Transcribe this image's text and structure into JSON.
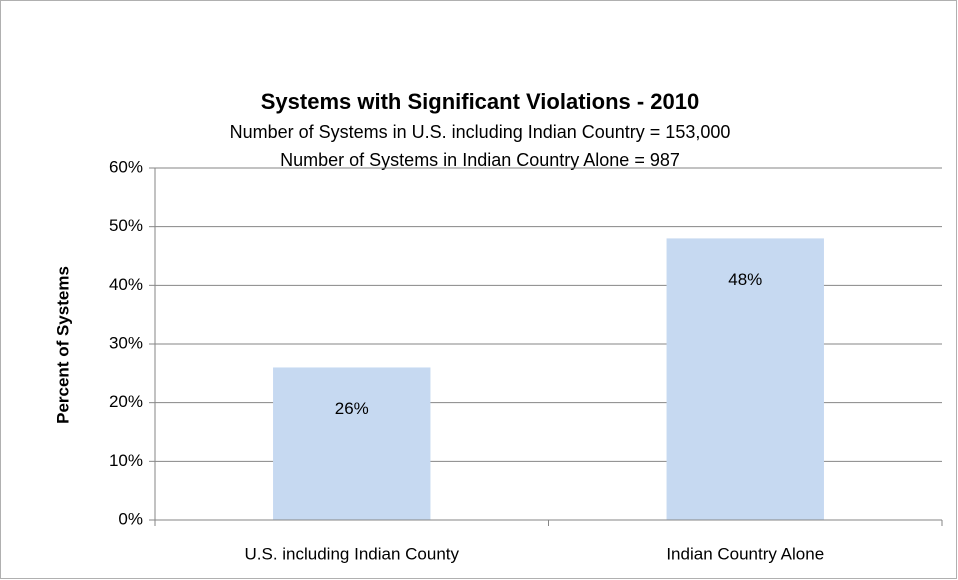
{
  "chart_data": {
    "type": "bar",
    "title": "Systems with Significant Violations - 2010",
    "subtitle": [
      "Number of Systems in U.S. including Indian Country = 153,000",
      "Number of Systems in Indian Country Alone = 987"
    ],
    "ylabel": "Percent of Systems",
    "categories": [
      "U.S. including Indian County",
      "Indian Country Alone"
    ],
    "values": [
      26,
      48
    ],
    "value_labels": [
      "26%",
      "48%"
    ],
    "color": "#c6d9f1",
    "ylim": [
      0,
      60
    ],
    "yticks": [
      {
        "value": 0,
        "label": "0%"
      },
      {
        "value": 10,
        "label": "10%"
      },
      {
        "value": 20,
        "label": "20%"
      },
      {
        "value": 30,
        "label": "30%"
      },
      {
        "value": 40,
        "label": "40%"
      },
      {
        "value": 50,
        "label": "50%"
      },
      {
        "value": 60,
        "label": "60%"
      }
    ],
    "grid": true
  }
}
